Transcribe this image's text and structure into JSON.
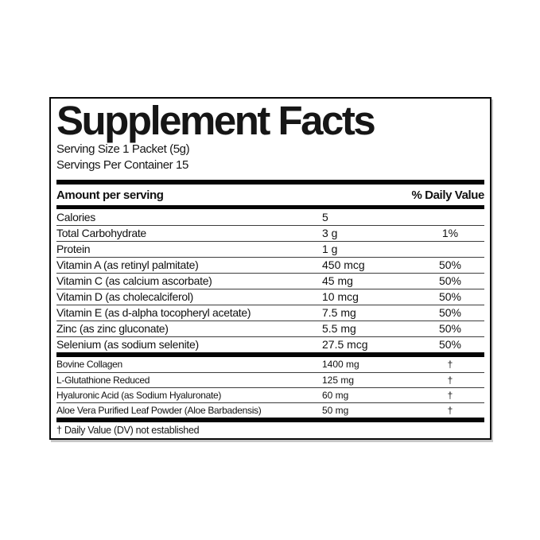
{
  "label": {
    "title": "Supplement Facts",
    "serving_size": "Serving Size 1 Packet (5g)",
    "servings_per_container": "Servings Per Container 15",
    "header": {
      "amount": "Amount per serving",
      "daily_value": "% Daily Value"
    },
    "rows_main": [
      {
        "name": "Calories",
        "amount": "5",
        "dv": ""
      },
      {
        "name": "Total Carbohydrate",
        "amount": "3 g",
        "dv": "1%"
      },
      {
        "name": "Protein",
        "amount": "1 g",
        "dv": ""
      },
      {
        "name": "Vitamin A (as retinyl palmitate)",
        "amount": "450 mcg",
        "dv": "50%"
      },
      {
        "name": "Vitamin C (as calcium ascorbate)",
        "amount": "45 mg",
        "dv": "50%"
      },
      {
        "name": "Vitamin D (as cholecalciferol)",
        "amount": "10 mcg",
        "dv": "50%"
      },
      {
        "name": "Vitamin E (as d-alpha tocopheryl acetate)",
        "amount": "7.5 mg",
        "dv": "50%"
      },
      {
        "name": "Zinc (as zinc gluconate)",
        "amount": "5.5 mg",
        "dv": "50%"
      },
      {
        "name": "Selenium (as sodium selenite)",
        "amount": "27.5 mcg",
        "dv": "50%"
      }
    ],
    "rows_blend": [
      {
        "name": "Bovine Collagen",
        "amount": "1400 mg",
        "dv": "†"
      },
      {
        "name": "L-Glutathione Reduced",
        "amount": "125 mg",
        "dv": "†"
      },
      {
        "name": "Hyaluronic Acid (as Sodium Hyaluronate)",
        "amount": "60 mg",
        "dv": "†"
      },
      {
        "name": "Aloe Vera Purified Leaf Powder (Aloe Barbadensis)",
        "amount": "50 mg",
        "dv": "†"
      }
    ],
    "footnote": "† Daily Value (DV) not established"
  },
  "colors": {
    "text": "#161616",
    "bar": "#050505",
    "separator_line": "#3d3d3d",
    "background": "#ffffff",
    "border": "#0a0a0a"
  }
}
